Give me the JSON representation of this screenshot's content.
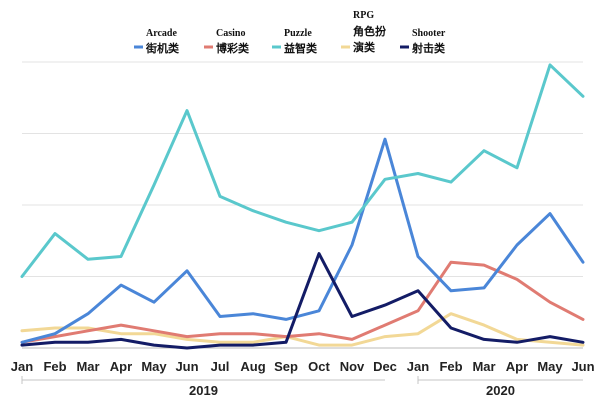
{
  "chart_data": {
    "type": "line",
    "title": "",
    "xlabel": "",
    "ylabel": "",
    "x": [
      "Jan",
      "Feb",
      "Mar",
      "Apr",
      "May",
      "Jun",
      "Jul",
      "Aug",
      "Sep",
      "Oct",
      "Nov",
      "Dec",
      "Jan",
      "Feb",
      "Mar",
      "Apr",
      "May",
      "Jun"
    ],
    "groups": [
      {
        "label": "2019",
        "from": 0,
        "to": 11
      },
      {
        "label": "2020",
        "from": 12,
        "to": 17
      }
    ],
    "ylim": [
      0,
      100
    ],
    "grid": true,
    "legend_position": "top",
    "series": [
      {
        "name": "Arcade",
        "name_zh": "街机类",
        "color": "#4a86d8",
        "values": [
          2,
          5,
          12,
          22,
          16,
          27,
          11,
          12,
          10,
          13,
          36,
          73,
          32,
          20,
          21,
          36,
          47,
          30
        ]
      },
      {
        "name": "Casino",
        "name_zh": "博彩类",
        "color": "#e07b72",
        "values": [
          2,
          4,
          6,
          8,
          6,
          4,
          5,
          5,
          4,
          5,
          3,
          8,
          13,
          30,
          29,
          24,
          16,
          10
        ]
      },
      {
        "name": "Puzzle",
        "name_zh": "益智类",
        "color": "#5ac8cc",
        "values": [
          25,
          40,
          31,
          32,
          57,
          83,
          53,
          48,
          44,
          41,
          44,
          59,
          61,
          58,
          69,
          63,
          99,
          88
        ]
      },
      {
        "name": "RPG",
        "name_zh": "角色扮演类",
        "color": "#f2d896",
        "values": [
          6,
          7,
          7,
          5,
          5,
          3,
          2,
          2,
          4,
          1,
          1,
          4,
          5,
          12,
          8,
          3,
          2,
          1
        ]
      },
      {
        "name": "Shooter",
        "name_zh": "射击类",
        "color": "#131c66",
        "values": [
          1,
          2,
          2,
          3,
          1,
          0,
          1,
          1,
          2,
          33,
          11,
          15,
          20,
          7,
          3,
          2,
          4,
          2
        ]
      }
    ]
  }
}
